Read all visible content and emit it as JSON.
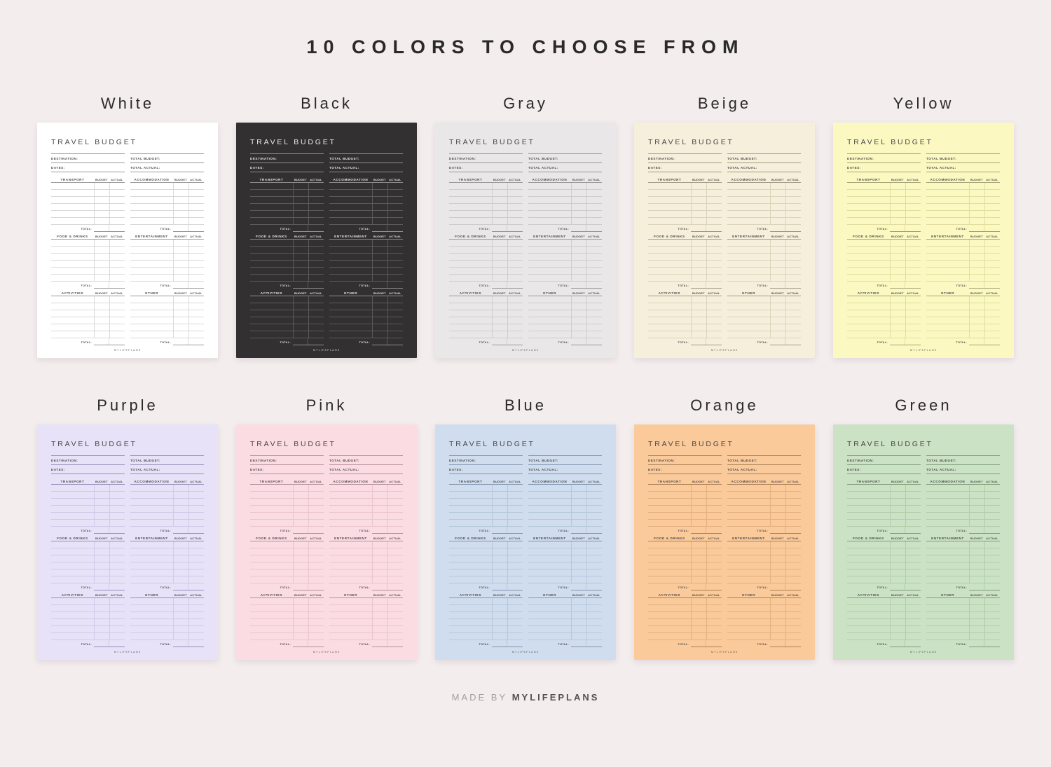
{
  "page": {
    "title": "10 COLORS TO CHOOSE FROM",
    "footer": {
      "prefix": "MADE BY",
      "brand": "MYLIFEPLANS"
    },
    "background": "#f3edee",
    "title_color": "#2b292a"
  },
  "template": {
    "heading": "TRAVEL BUDGET",
    "fields_left": [
      "DESTINATION:",
      "DATES:"
    ],
    "fields_right": [
      "TOTAL BUDGET:",
      "TOTAL ACTUAL:"
    ],
    "sections": [
      "TRANSPORT",
      "ACCOMMODATION",
      "FOOD & DRINKS",
      "ENTERTAINMENT",
      "ACTIVITIES",
      "OTHER"
    ],
    "column_headers": [
      "BUDGET",
      "ACTUAL"
    ],
    "total_label": "TOTAL:",
    "rows_per_section": 6,
    "brand": "MYLIFEPLANS"
  },
  "cards": [
    {
      "label": "White",
      "bg": "#ffffff",
      "ink": "#4b4849",
      "line": "#d9d9d9",
      "strong": "#9c9a9a"
    },
    {
      "label": "Black",
      "bg": "#333031",
      "ink": "#eae8e9",
      "line": "#5c595a",
      "strong": "#8f8c8d"
    },
    {
      "label": "Gray",
      "bg": "#e9e7e8",
      "ink": "#4b4849",
      "line": "#cecccd",
      "strong": "#9a9798"
    },
    {
      "label": "Beige",
      "bg": "#f5efdb",
      "ink": "#4b4849",
      "line": "#dcd4bb",
      "strong": "#a49c82"
    },
    {
      "label": "Yellow",
      "bg": "#fbf9c1",
      "ink": "#4b4849",
      "line": "#e1de9f",
      "strong": "#a7a474"
    },
    {
      "label": "Purple",
      "bg": "#e7e2f7",
      "ink": "#4b4849",
      "line": "#cfc9e8",
      "strong": "#978fba"
    },
    {
      "label": "Pink",
      "bg": "#fcdce3",
      "ink": "#4b4849",
      "line": "#e9c4cd",
      "strong": "#b68e99"
    },
    {
      "label": "Blue",
      "bg": "#cfddee",
      "ink": "#4b4849",
      "line": "#b6c7db",
      "strong": "#8195b1"
    },
    {
      "label": "Orange",
      "bg": "#fbca9b",
      "ink": "#4b4849",
      "line": "#e2b17f",
      "strong": "#aa8054"
    },
    {
      "label": "Green",
      "bg": "#cbe2c5",
      "ink": "#4b4849",
      "line": "#b2ccaa",
      "strong": "#7f9e76"
    }
  ]
}
